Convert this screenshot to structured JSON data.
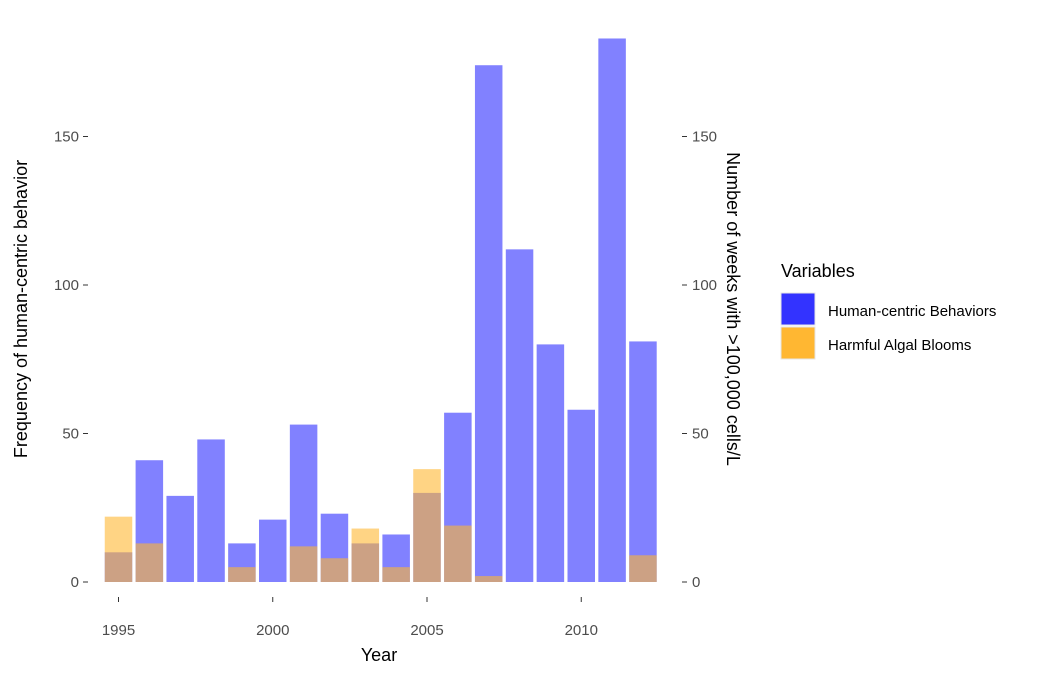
{
  "chart_data": {
    "type": "bar",
    "title": "",
    "xlabel": "Year",
    "ylabel_left": "Frequency of human-centric behavior",
    "ylabel_right": "Number of weeks with >100,000 cells/L",
    "x": [
      1995,
      1996,
      1997,
      1998,
      1999,
      2000,
      2001,
      2002,
      2003,
      2004,
      2005,
      2006,
      2007,
      2008,
      2009,
      2010,
      2011,
      2012
    ],
    "x_ticks": [
      "1995",
      "2000",
      "2005",
      "2010"
    ],
    "y_ticks": [
      "0",
      "50",
      "100",
      "150"
    ],
    "ylim": [
      0,
      185
    ],
    "xlim": [
      1994.4,
      2012.6
    ],
    "grid": false,
    "legend_placement": "right",
    "series": [
      {
        "name": "Human-centric Behaviors",
        "color": "#3333ff",
        "values": [
          10,
          41,
          29,
          48,
          13,
          21,
          53,
          23,
          13,
          16,
          30,
          57,
          174,
          112,
          80,
          58,
          183,
          81
        ]
      },
      {
        "name": "Harmful Algal Blooms",
        "color": "#ffb732",
        "values": [
          22,
          13,
          0,
          0,
          5,
          0,
          12,
          8,
          18,
          5,
          38,
          19,
          2,
          0,
          0,
          0,
          0,
          9
        ]
      }
    ],
    "legend": {
      "title": "Variables",
      "items": [
        "Human-centric Behaviors",
        "Harmful Algal Blooms"
      ]
    }
  }
}
